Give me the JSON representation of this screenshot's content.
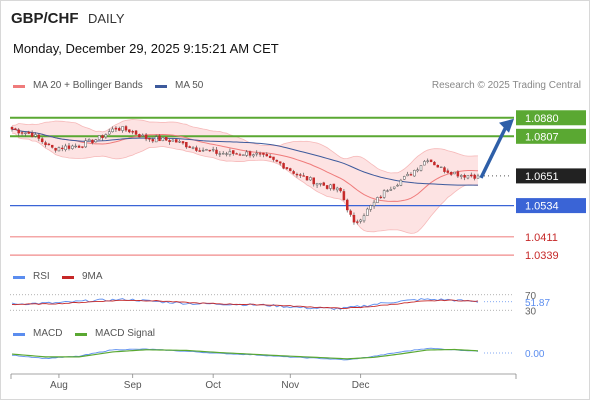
{
  "header": {
    "symbol": "GBP/CHF",
    "period": "DAILY",
    "datetime": "Monday, December 29, 2025 9:15:21 AM CET"
  },
  "legends": {
    "ma20_bb": "MA 20 + Bollinger Bands",
    "ma50": "MA 50",
    "rsi": "RSI",
    "rsi_ma": "9MA",
    "macd": "MACD",
    "macd_signal": "MACD Signal"
  },
  "copyright": "Research © 2025 Trading Central",
  "colors": {
    "ma20": "#ef7b7b",
    "band_fill": "#fde3e3",
    "ma50": "#3d5a9c",
    "resistance": "#5aa832",
    "support": "#3a64d6",
    "support_red": "#f08a8a",
    "arrow": "#2e5fa8",
    "bull": "#ffffff",
    "bear": "#c62828",
    "wick": "#555555",
    "rsi": "#5b8def",
    "rsi_ma": "#c62828",
    "macd": "#5b8def",
    "macd_signal": "#5aa832"
  },
  "chart_data": {
    "type": "candlestick",
    "price_ylim": [
      1.03,
      1.095
    ],
    "x_labels": [
      "Aug",
      "Sep",
      "Oct",
      "Nov",
      "Dec"
    ],
    "x_label_index": [
      14,
      36,
      60,
      83,
      104
    ],
    "n_bars": 140,
    "close_key_points": [
      [
        0,
        1.0835
      ],
      [
        6,
        1.0815
      ],
      [
        12,
        1.076
      ],
      [
        20,
        1.077
      ],
      [
        26,
        1.08
      ],
      [
        31,
        1.084
      ],
      [
        35,
        1.083
      ],
      [
        40,
        1.08
      ],
      [
        48,
        1.079
      ],
      [
        55,
        1.076
      ],
      [
        62,
        1.074
      ],
      [
        72,
        1.074
      ],
      [
        80,
        1.07
      ],
      [
        86,
        1.065
      ],
      [
        93,
        1.0615
      ],
      [
        98,
        1.059
      ],
      [
        102,
        1.046
      ],
      [
        107,
        1.053
      ],
      [
        112,
        1.06
      ],
      [
        118,
        1.065
      ],
      [
        124,
        1.072
      ],
      [
        128,
        1.068
      ],
      [
        134,
        1.0655
      ],
      [
        139,
        1.0651
      ]
    ],
    "price_levels": [
      {
        "value": 1.088,
        "label": "1.0880",
        "kind": "resistance",
        "boxed": true
      },
      {
        "value": 1.0807,
        "label": "1.0807",
        "kind": "resistance",
        "boxed": true
      },
      {
        "value": 1.0651,
        "label": "1.0651",
        "kind": "last",
        "boxed": true
      },
      {
        "value": 1.0534,
        "label": "1.0534",
        "kind": "support",
        "boxed": true
      },
      {
        "value": 1.0411,
        "label": "1.0411",
        "kind": "support_red",
        "boxed": false
      },
      {
        "value": 1.0339,
        "label": "1.0339",
        "kind": "support_red",
        "boxed": false
      }
    ],
    "arrow": {
      "from_value": 1.0651,
      "to_value": 1.088
    },
    "rsi": {
      "levels": [
        70,
        30
      ],
      "ylim": [
        10,
        90
      ],
      "level_labels": [
        "70",
        "30"
      ],
      "value_label": "51.87",
      "key_points": [
        [
          0,
          46
        ],
        [
          14,
          49
        ],
        [
          24,
          55
        ],
        [
          34,
          58
        ],
        [
          44,
          52
        ],
        [
          54,
          47
        ],
        [
          64,
          46
        ],
        [
          76,
          43
        ],
        [
          88,
          36
        ],
        [
          98,
          34
        ],
        [
          104,
          40
        ],
        [
          112,
          50
        ],
        [
          122,
          58
        ],
        [
          130,
          57
        ],
        [
          139,
          52
        ]
      ],
      "ma_key_points": [
        [
          0,
          45
        ],
        [
          14,
          47
        ],
        [
          24,
          52
        ],
        [
          34,
          56
        ],
        [
          44,
          54
        ],
        [
          54,
          49
        ],
        [
          64,
          46
        ],
        [
          76,
          44
        ],
        [
          88,
          39
        ],
        [
          98,
          35
        ],
        [
          104,
          37
        ],
        [
          112,
          44
        ],
        [
          122,
          53
        ],
        [
          130,
          56
        ],
        [
          139,
          53
        ]
      ]
    },
    "macd": {
      "ylim": [
        -0.006,
        0.006
      ],
      "zero_label": "0.00",
      "key_points": [
        [
          0,
          -0.001
        ],
        [
          10,
          -0.0025
        ],
        [
          20,
          -0.0015
        ],
        [
          30,
          0.0015
        ],
        [
          40,
          0.0018
        ],
        [
          52,
          0.0008
        ],
        [
          62,
          -0.0002
        ],
        [
          72,
          -0.0008
        ],
        [
          82,
          -0.0018
        ],
        [
          92,
          -0.0025
        ],
        [
          100,
          -0.0032
        ],
        [
          108,
          -0.0015
        ],
        [
          116,
          0.0005
        ],
        [
          124,
          0.0022
        ],
        [
          132,
          0.0015
        ],
        [
          139,
          0.0008
        ]
      ],
      "signal_key_points": [
        [
          0,
          -0.0005
        ],
        [
          10,
          -0.0018
        ],
        [
          20,
          -0.0018
        ],
        [
          30,
          0.0005
        ],
        [
          40,
          0.0015
        ],
        [
          52,
          0.0012
        ],
        [
          62,
          0.0002
        ],
        [
          72,
          -0.0006
        ],
        [
          82,
          -0.0014
        ],
        [
          92,
          -0.0021
        ],
        [
          100,
          -0.0027
        ],
        [
          108,
          -0.002
        ],
        [
          116,
          -0.0004
        ],
        [
          124,
          0.0014
        ],
        [
          132,
          0.0016
        ],
        [
          139,
          0.001
        ]
      ]
    }
  }
}
